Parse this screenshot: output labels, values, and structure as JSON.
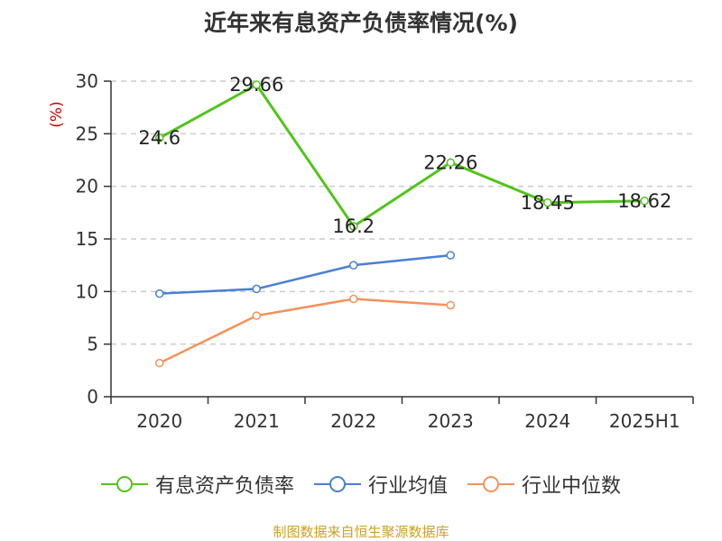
{
  "title": "近年来有息资产负债率情况(%)",
  "source": "制图数据来自恒生聚源数据库",
  "chart_data": {
    "type": "line",
    "title": "近年来有息资产负债率情况(%)",
    "ylabel": "(%)",
    "xlabel": "",
    "categories": [
      "2020",
      "2021",
      "2022",
      "2023",
      "2024",
      "2025H1"
    ],
    "ylim": [
      0,
      30
    ],
    "yticks": [
      0,
      5,
      10,
      15,
      20,
      25,
      30
    ],
    "grid": true,
    "legend_position": "bottom",
    "series": [
      {
        "name": "有息资产负债率",
        "color": "#52c41a",
        "values": [
          24.6,
          29.66,
          16.2,
          22.26,
          18.45,
          18.62
        ],
        "labels": [
          "24.6",
          "29.66",
          "16.2",
          "22.26",
          "18.45",
          "18.62"
        ]
      },
      {
        "name": "行业均值",
        "color": "#4a7fd4",
        "values": [
          9.8,
          10.25,
          12.5,
          13.45,
          null,
          null
        ]
      },
      {
        "name": "行业中位数",
        "color": "#f4925c",
        "values": [
          3.2,
          7.7,
          9.3,
          8.7,
          null,
          null
        ]
      }
    ]
  }
}
